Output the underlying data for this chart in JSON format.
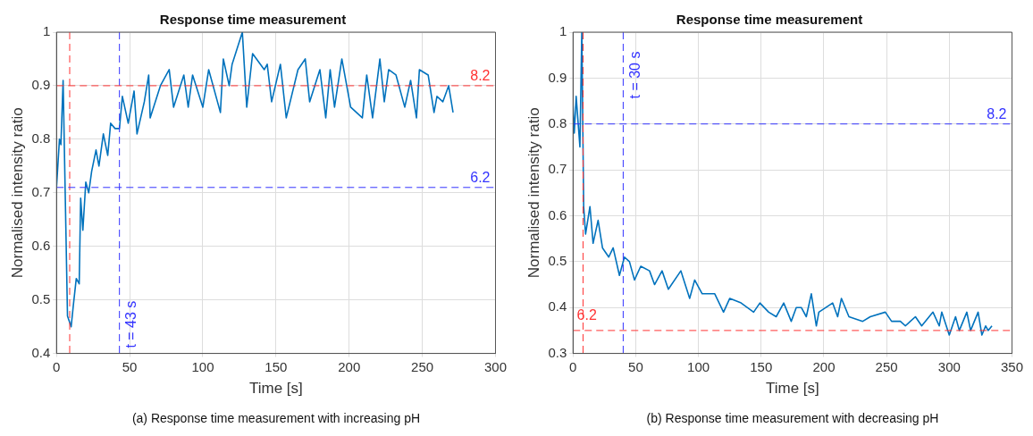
{
  "chart_data": [
    {
      "type": "line",
      "title": "Response time measurement",
      "xlabel": "Time [s]",
      "ylabel": "Normalised intensity ratio",
      "xlim": [
        0,
        300
      ],
      "xticks": [
        0,
        50,
        100,
        150,
        200,
        250,
        300
      ],
      "ylim": [
        0.4,
        1
      ],
      "yticks": [
        0.4,
        0.5,
        0.6,
        0.7,
        0.8,
        0.9,
        1
      ],
      "grid": true,
      "marker": "none",
      "line_style": "solid",
      "series": [
        {
          "color": "#0072bd",
          "x": [
            0,
            2,
            3,
            4.5,
            7.5,
            10,
            11.5,
            13.5,
            15.5,
            16.5,
            18,
            20,
            22,
            24,
            27,
            29,
            32,
            35,
            37,
            40,
            43,
            45,
            49,
            53,
            55,
            60,
            63,
            64,
            71,
            77,
            80,
            87,
            90,
            93,
            100,
            104,
            112,
            114,
            118,
            120,
            127,
            130,
            134,
            142,
            144,
            147,
            153,
            157,
            165,
            170,
            173,
            180,
            184,
            187,
            190,
            195,
            201,
            209,
            212,
            216,
            221,
            224,
            227,
            232,
            238,
            242,
            246,
            248,
            254,
            258,
            260,
            264,
            268,
            271
          ],
          "values": [
            0.71,
            0.8,
            0.79,
            0.91,
            0.47,
            0.45,
            0.49,
            0.54,
            0.53,
            0.69,
            0.63,
            0.72,
            0.7,
            0.74,
            0.78,
            0.75,
            0.81,
            0.77,
            0.83,
            0.82,
            0.82,
            0.88,
            0.83,
            0.89,
            0.81,
            0.87,
            0.92,
            0.84,
            0.9,
            0.93,
            0.86,
            0.92,
            0.86,
            0.92,
            0.86,
            0.93,
            0.85,
            0.95,
            0.9,
            0.94,
            1.0,
            0.86,
            0.96,
            0.93,
            0.94,
            0.87,
            0.94,
            0.84,
            0.93,
            0.95,
            0.87,
            0.93,
            0.84,
            0.93,
            0.86,
            0.95,
            0.86,
            0.84,
            0.92,
            0.84,
            0.95,
            0.87,
            0.93,
            0.92,
            0.86,
            0.91,
            0.84,
            0.93,
            0.92,
            0.85,
            0.88,
            0.87,
            0.9,
            0.85
          ]
        }
      ],
      "ref_lines": [
        {
          "axis": "x",
          "value": 9,
          "color": "#ff3333",
          "line_style": "dashed"
        },
        {
          "axis": "x",
          "value": 43,
          "color": "#3333ff",
          "line_style": "dashed"
        },
        {
          "axis": "y",
          "value": 0.9,
          "color": "#ff3333",
          "line_style": "dashed"
        },
        {
          "axis": "y",
          "value": 0.71,
          "color": "#3333ff",
          "line_style": "dashed"
        }
      ],
      "annotations": [
        "8.2",
        "6.2",
        {
          "text": "t = 43 s",
          "x": 43,
          "y": 0.41
        },
        "(a) Response time measurement with increasing pH"
      ]
    },
    {
      "type": "line",
      "title": "Response time measurement",
      "xlabel": "Time [s]",
      "ylabel": "Normalised intensity ratio",
      "xlim": [
        0,
        350
      ],
      "xticks": [
        0,
        50,
        100,
        150,
        200,
        250,
        300,
        350
      ],
      "ylim": [
        0.3,
        1
      ],
      "yticks": [
        0.3,
        0.4,
        0.5,
        0.6,
        0.7,
        0.8,
        0.9,
        1
      ],
      "grid": true,
      "marker": "none",
      "line_style": "solid",
      "series": [
        {
          "color": "#0072bd",
          "x": [
            0,
            1,
            2.5,
            5.5,
            7,
            8.5,
            10,
            13.5,
            16,
            20,
            23.5,
            28.5,
            32,
            37,
            41,
            45,
            49,
            54,
            61,
            65,
            71,
            76,
            86,
            93,
            97,
            103,
            113,
            120,
            125,
            134,
            144,
            149,
            156,
            162,
            168,
            174,
            178,
            182,
            186,
            190,
            194,
            196,
            207,
            211,
            214,
            220,
            231,
            237,
            249,
            254,
            261,
            265,
            273,
            278,
            287,
            292,
            294,
            300,
            305,
            308,
            314,
            317,
            323,
            326,
            329,
            331,
            334
          ],
          "values": [
            0.84,
            0.78,
            0.86,
            0.75,
            1.0,
            0.62,
            0.56,
            0.62,
            0.54,
            0.59,
            0.53,
            0.51,
            0.53,
            0.47,
            0.51,
            0.5,
            0.46,
            0.49,
            0.48,
            0.45,
            0.48,
            0.44,
            0.48,
            0.42,
            0.46,
            0.43,
            0.43,
            0.39,
            0.42,
            0.41,
            0.39,
            0.41,
            0.39,
            0.38,
            0.41,
            0.37,
            0.4,
            0.4,
            0.38,
            0.43,
            0.36,
            0.39,
            0.41,
            0.38,
            0.42,
            0.38,
            0.37,
            0.38,
            0.39,
            0.37,
            0.37,
            0.36,
            0.38,
            0.36,
            0.39,
            0.36,
            0.39,
            0.34,
            0.38,
            0.35,
            0.39,
            0.35,
            0.39,
            0.34,
            0.36,
            0.35,
            0.36
          ]
        }
      ],
      "ref_lines": [
        {
          "axis": "x",
          "value": 8,
          "color": "#ff3333",
          "line_style": "dashed"
        },
        {
          "axis": "x",
          "value": 40,
          "color": "#3333ff",
          "line_style": "dashed"
        },
        {
          "axis": "y",
          "value": 0.8,
          "color": "#3333ff",
          "line_style": "dashed"
        },
        {
          "axis": "y",
          "value": 0.35,
          "color": "#ff3333",
          "line_style": "dashed"
        }
      ],
      "annotations": [
        "8.2",
        {
          "text": "6.2",
          "x": 11,
          "y": 0.367
        },
        {
          "text": "t = 30 s",
          "x": 40,
          "y": 0.855
        },
        "(b) Response time measurement with decreasing pH"
      ]
    }
  ]
}
